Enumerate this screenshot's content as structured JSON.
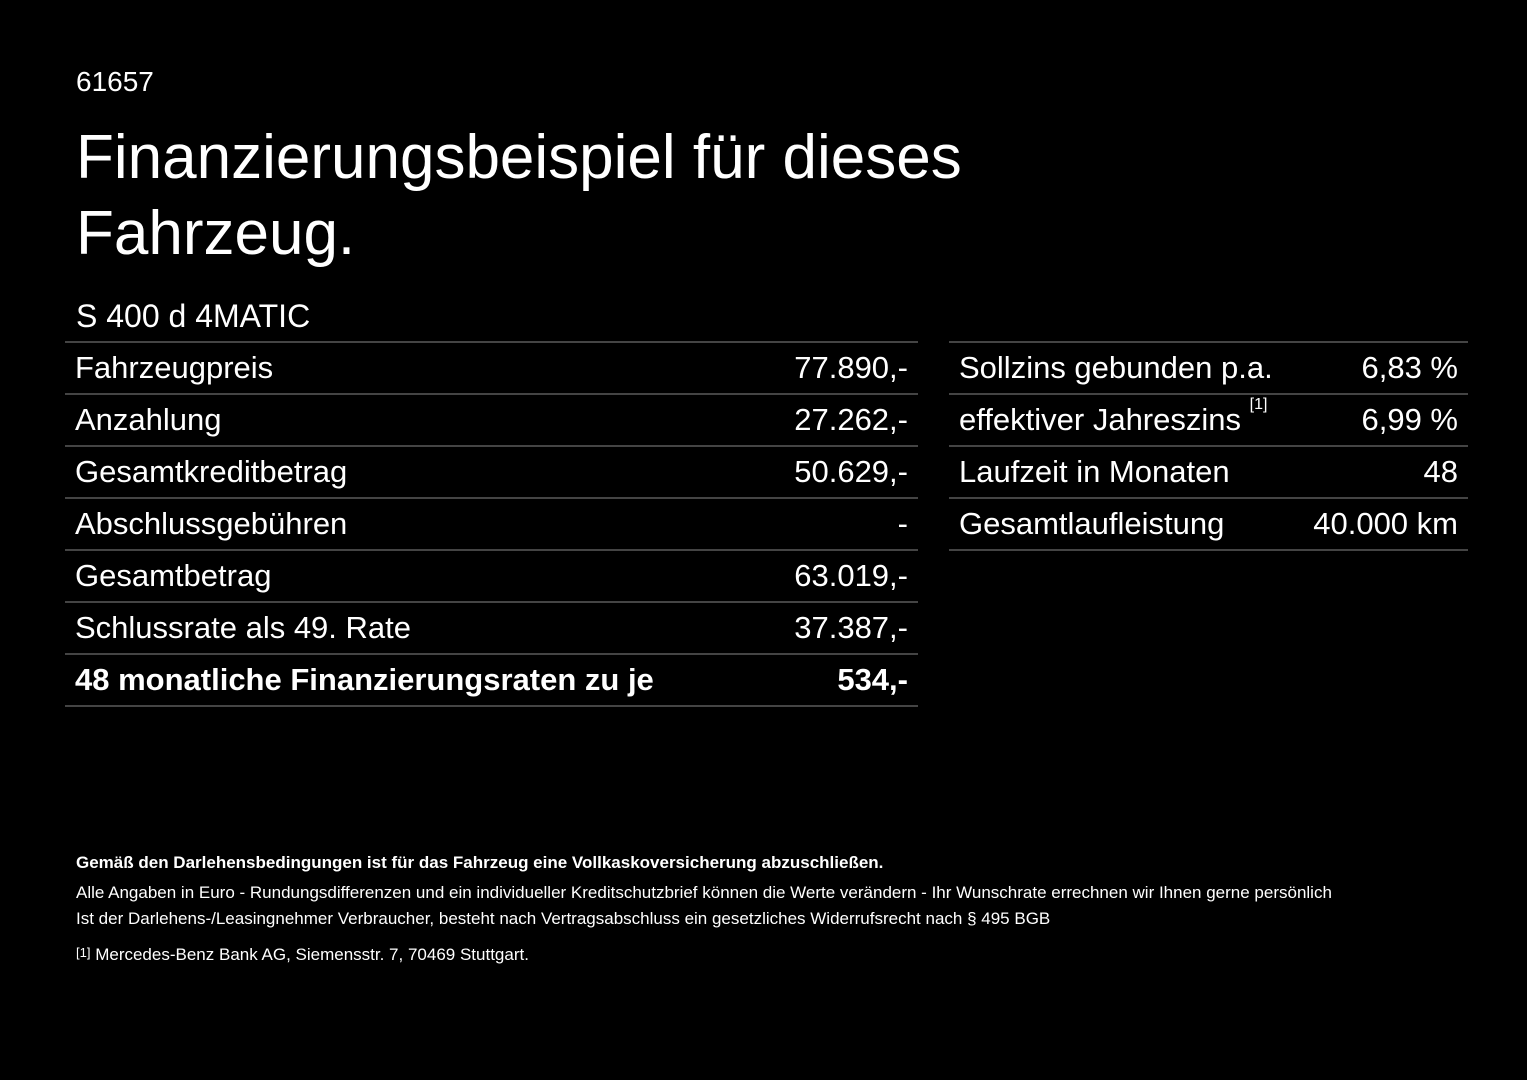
{
  "header": {
    "code": "61657",
    "title_line1": "Finanzierungsbeispiel für dieses",
    "title_line2": "Fahrzeug."
  },
  "model": "S 400 d 4MATIC",
  "left_table": {
    "rows": [
      [
        "Fahrzeugpreis",
        "77.890,-"
      ],
      [
        "Anzahlung",
        "27.262,-"
      ],
      [
        "Gesamtkreditbetrag",
        "50.629,-"
      ],
      [
        "Abschlussgebühren",
        "-"
      ],
      [
        "Gesamtbetrag",
        "63.019,-"
      ],
      [
        "Schlussrate als 49. Rate",
        "37.387,-"
      ],
      [
        "48 monatliche Finanzierungsraten zu je",
        "534,-"
      ]
    ]
  },
  "right_table": {
    "rows": [
      [
        "Sollzins gebunden p.a.",
        "6,83 %"
      ],
      [
        "effektiver Jahreszins",
        "6,99 %"
      ],
      [
        "Laufzeit in Monaten",
        "48"
      ],
      [
        "Gesamtlaufleistung",
        "40.000 km"
      ]
    ],
    "footnote_ref": "[1]"
  },
  "footer": {
    "bold_note": "Gemäß den Darlehensbedingungen ist für das Fahrzeug eine Vollkaskoversicherung abzuschließen.",
    "line1": "Alle Angaben in Euro - Rundungsdifferenzen und ein individueller Kreditschutzbrief können die Werte verändern - Ihr Wunschrate errechnen wir Ihnen gerne persönlich",
    "line2": "Ist der Darlehens-/Leasingnehmer Verbraucher, besteht nach Vertragsabschluss ein gesetzliches Widerrufsrecht nach § 495 BGB",
    "footnote_mark": "[1]",
    "footnote_text": "Mercedes-Benz Bank AG, Siemensstr. 7, 70469 Stuttgart."
  }
}
